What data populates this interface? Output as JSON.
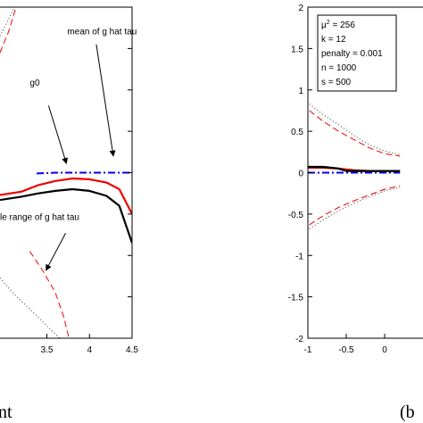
{
  "chart_data": [
    {
      "type": "line",
      "panel": "left",
      "caption": "nt",
      "xlim": [
        2.95,
        4.5
      ],
      "ylim": [
        -2,
        2
      ],
      "x_ticks": [
        {
          "v": 3.5,
          "label": "3.5"
        },
        {
          "v": 4,
          "label": "4"
        },
        {
          "v": 4.5,
          "label": "4.5"
        }
      ],
      "annotations": [
        {
          "text": "mean of g hat tau",
          "x": 3.74,
          "y": 1.67,
          "arrow_to": [
            4.28,
            0.2
          ],
          "arrow_from": [
            4.08,
            1.55
          ]
        },
        {
          "text": "g0",
          "x": 3.3,
          "y": 1.05,
          "arrow_to": [
            3.73,
            0.11
          ],
          "arrow_from": [
            3.52,
            0.81
          ]
        },
        {
          "text": "le range of g hat tau",
          "x": 2.95,
          "y": -0.57,
          "arrow_to": [
            3.49,
            -1.18
          ],
          "arrow_from": [
            3.72,
            -0.73
          ]
        }
      ],
      "series": [
        {
          "role": "mean",
          "style": "dashdot",
          "color": "#0000ee",
          "x": [
            3.38,
            3.6,
            3.8,
            4.0,
            4.2,
            4.4,
            4.5
          ],
          "y": [
            -0.01,
            0.0,
            0.0,
            0.0,
            0.0,
            0.0,
            0.0
          ]
        },
        {
          "role": "red-solid",
          "style": "solid",
          "color": "#ee0000",
          "x": [
            2.95,
            3.2,
            3.4,
            3.6,
            3.8,
            4.0,
            4.2,
            4.35,
            4.5
          ],
          "y": [
            -0.27,
            -0.23,
            -0.15,
            -0.1,
            -0.07,
            -0.08,
            -0.12,
            -0.2,
            -0.5
          ]
        },
        {
          "role": "black-solid",
          "style": "solid",
          "color": "#000000",
          "x": [
            2.95,
            3.2,
            3.4,
            3.6,
            3.8,
            4.0,
            4.2,
            4.35,
            4.5
          ],
          "y": [
            -0.33,
            -0.29,
            -0.25,
            -0.22,
            -0.2,
            -0.22,
            -0.28,
            -0.4,
            -0.85
          ]
        },
        {
          "role": "red-dashed-upper",
          "style": "dashed",
          "color": "#ee0000",
          "x": [
            2.95,
            3.05,
            3.14
          ],
          "y": [
            1.45,
            1.7,
            2.0
          ]
        },
        {
          "role": "black-dotted-upper",
          "style": "dotted",
          "color": "#555555",
          "x": [
            2.95,
            3.05,
            3.12
          ],
          "y": [
            1.65,
            1.85,
            2.0
          ]
        },
        {
          "role": "red-dashed-lower",
          "style": "dashed",
          "color": "#ee0000",
          "x": [
            3.3,
            3.45,
            3.6,
            3.7,
            3.76
          ],
          "y": [
            -0.95,
            -1.18,
            -1.45,
            -1.75,
            -2.0
          ]
        },
        {
          "role": "black-dotted-lower",
          "style": "dotted",
          "color": "#555555",
          "x": [
            2.95,
            3.1,
            3.3,
            3.5,
            3.65
          ],
          "y": [
            -1.27,
            -1.45,
            -1.65,
            -1.85,
            -2.0
          ]
        }
      ]
    },
    {
      "type": "line",
      "panel": "right",
      "caption": "(b",
      "xlim": [
        -1,
        0.5
      ],
      "ylim": [
        -2,
        2
      ],
      "x_ticks": [
        {
          "v": -1,
          "label": "-1"
        },
        {
          "v": -0.5,
          "label": "-0.5"
        },
        {
          "v": 0,
          "label": "0"
        }
      ],
      "y_ticks": [
        {
          "v": 2,
          "label": "2"
        },
        {
          "v": 1.5,
          "label": "1.5"
        },
        {
          "v": 1,
          "label": "1"
        },
        {
          "v": 0.5,
          "label": "0.5"
        },
        {
          "v": 0,
          "label": "0"
        },
        {
          "v": -0.5,
          "label": "-0.5"
        },
        {
          "v": -1,
          "label": "-1"
        },
        {
          "v": -1.5,
          "label": "-1.5"
        },
        {
          "v": -2,
          "label": "-2"
        }
      ],
      "info_box": {
        "mu_base": "μ",
        "mu_exp": "2",
        "mu_value": " = 256",
        "lines": [
          "k = 12",
          "penalty = 0.001",
          "n = 1000",
          "s = 500"
        ]
      },
      "series": [
        {
          "role": "mean",
          "style": "dashdot",
          "color": "#0000ee",
          "x": [
            -1,
            -0.8,
            -0.6,
            -0.4,
            -0.2,
            0.0,
            0.2
          ],
          "y": [
            0.0,
            0.0,
            0.0,
            0.0,
            0.0,
            0.0,
            0.0
          ]
        },
        {
          "role": "red-solid",
          "style": "solid",
          "color": "#ee0000",
          "x": [
            -1,
            -0.8,
            -0.6,
            -0.5,
            -0.4,
            -0.2,
            0.0,
            0.2
          ],
          "y": [
            0.06,
            0.06,
            0.05,
            0.04,
            0.03,
            0.02,
            0.02,
            0.02
          ]
        },
        {
          "role": "black-solid",
          "style": "solid",
          "color": "#000000",
          "x": [
            -1,
            -0.8,
            -0.6,
            -0.5,
            -0.4,
            -0.2,
            0.0,
            0.2
          ],
          "y": [
            0.07,
            0.07,
            0.05,
            0.02,
            0.02,
            0.02,
            0.02,
            0.02
          ]
        },
        {
          "role": "red-dashed-upper",
          "style": "dashed",
          "color": "#ee0000",
          "x": [
            -0.98,
            -0.8,
            -0.6,
            -0.4,
            -0.2,
            0.0,
            0.2
          ],
          "y": [
            0.75,
            0.62,
            0.5,
            0.4,
            0.3,
            0.23,
            0.2
          ]
        },
        {
          "role": "black-dotted-upper",
          "style": "dotted",
          "color": "#555555",
          "x": [
            -0.98,
            -0.8,
            -0.6,
            -0.4,
            -0.2,
            0.0,
            0.2
          ],
          "y": [
            0.83,
            0.7,
            0.58,
            0.45,
            0.34,
            0.26,
            0.22
          ]
        },
        {
          "role": "red-dashed-lower",
          "style": "dashed",
          "color": "#ee0000",
          "x": [
            -0.98,
            -0.8,
            -0.6,
            -0.4,
            -0.2,
            0.0,
            0.2
          ],
          "y": [
            -0.63,
            -0.52,
            -0.42,
            -0.34,
            -0.27,
            -0.2,
            -0.16
          ]
        },
        {
          "role": "black-dotted-lower",
          "style": "dotted",
          "color": "#555555",
          "x": [
            -0.98,
            -0.8,
            -0.6,
            -0.4,
            -0.2,
            0.0,
            0.2
          ],
          "y": [
            -0.68,
            -0.57,
            -0.46,
            -0.37,
            -0.29,
            -0.22,
            -0.18
          ]
        }
      ]
    }
  ]
}
